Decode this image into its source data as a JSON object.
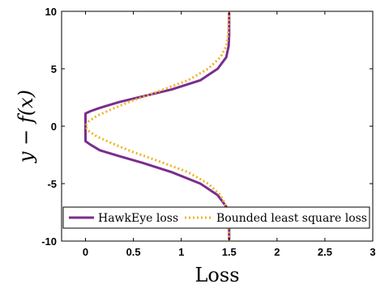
{
  "chart_data": {
    "type": "line",
    "title": "",
    "xlabel": "Loss",
    "ylabel": "y − f(x)",
    "xlim": [
      -0.25,
      3
    ],
    "ylim": [
      -10,
      10
    ],
    "x_ticks": [
      0,
      0.5,
      1,
      1.5,
      2,
      2.5,
      3
    ],
    "x_tick_labels": [
      "0",
      "0.5",
      "1",
      "1.5",
      "2",
      "2.5",
      "3"
    ],
    "y_ticks": [
      -10,
      -5,
      0,
      5,
      10
    ],
    "y_tick_labels": [
      "-10",
      "-5",
      "0",
      "5",
      "10"
    ],
    "grid": false,
    "legend_position": "bottom",
    "series": [
      {
        "name": "HawkEye loss",
        "color": "#7b2d8e",
        "style": "solid",
        "x": [
          1.5,
          1.5,
          1.495,
          1.47,
          1.38,
          1.2,
          0.9,
          0.6,
          0.35,
          0.15,
          0.05,
          0.0,
          0.0,
          0.0,
          0.0,
          0.05,
          0.15,
          0.35,
          0.6,
          0.9,
          1.2,
          1.38,
          1.47,
          1.495,
          1.5,
          1.5
        ],
        "y": [
          10,
          8,
          7,
          6,
          5,
          4,
          3.2,
          2.6,
          2.1,
          1.6,
          1.3,
          1.1,
          0,
          -1.1,
          -1.3,
          -1.6,
          -2.1,
          -2.6,
          -3.2,
          -4,
          -5,
          -6,
          -7,
          -8,
          -9,
          -10
        ]
      },
      {
        "name": "Bounded least square loss",
        "color": "#f0b323",
        "style": "dotted",
        "x": [
          1.5,
          1.49,
          1.47,
          1.41,
          1.28,
          1.07,
          0.75,
          0.48,
          0.28,
          0.12,
          0.03,
          0.0,
          0.03,
          0.12,
          0.28,
          0.48,
          0.75,
          1.07,
          1.28,
          1.41,
          1.47,
          1.49,
          1.5
        ],
        "y": [
          10,
          8,
          7,
          6,
          5,
          4,
          3,
          2.2,
          1.5,
          0.9,
          0.4,
          0,
          -0.4,
          -0.9,
          -1.5,
          -2.2,
          -3,
          -4,
          -5,
          -6,
          -7,
          -8,
          -10
        ]
      }
    ]
  }
}
